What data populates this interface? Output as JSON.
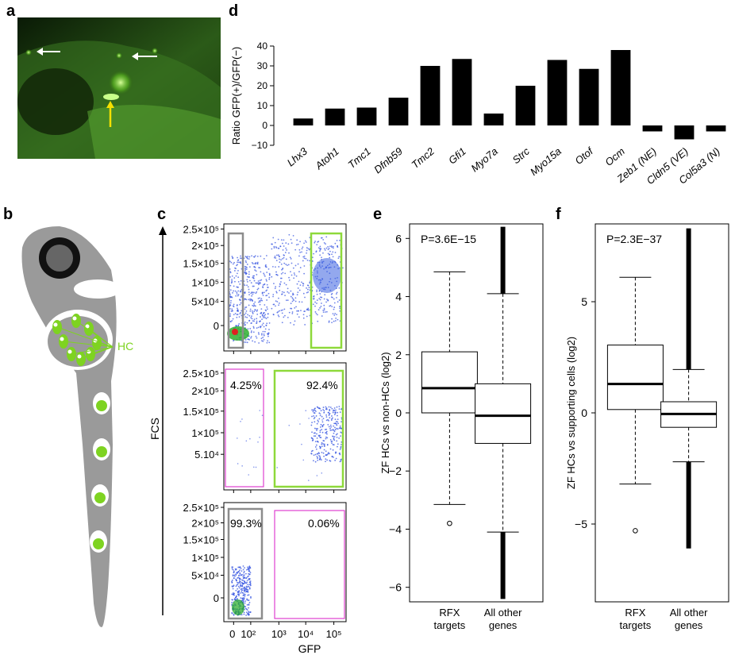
{
  "panel_labels": {
    "a": "a",
    "b": "b",
    "c": "c",
    "d": "d",
    "e": "e",
    "f": "f"
  },
  "panel_b": {
    "hc_label": "HC"
  },
  "panel_c": {
    "y_axis_label": "FCS",
    "x_axis_label": "GFP",
    "y_ticks": [
      "2.5×10⁵",
      "2×10⁵",
      "1.5×10⁵",
      "1×10⁵",
      "5×10⁴",
      "0"
    ],
    "y_ticks_mid": [
      "2.5×10⁵",
      "2×10⁵",
      "1.5×10⁵",
      "1×10⁵",
      "5.10⁴"
    ],
    "x_ticks": [
      "0",
      "10²",
      "10³",
      "10⁴",
      "10⁵"
    ],
    "plot2_left_pct": "4.25%",
    "plot2_right_pct": "92.4%",
    "plot3_left_pct": "99.3%",
    "plot3_right_pct": "0.06%"
  },
  "colors": {
    "bar": "#000000",
    "gfp_green": "#8ed93a",
    "gate_gray": "#8c8c8c",
    "gate_magenta": "#e040d0",
    "fish_gray": "#9a9a9a",
    "hc_green": "#7ed321"
  },
  "chart_data": [
    {
      "type": "bar",
      "panel": "d",
      "ylabel": "Ratio GFP(+)/GFP(−)",
      "ylim": [
        -10,
        40
      ],
      "yticks": [
        -10,
        0,
        10,
        20,
        30,
        40
      ],
      "categories": [
        "Lhx3",
        "Atoh1",
        "Tmc1",
        "Dfnb59",
        "Tmc2",
        "Gfi1",
        "Myo7a",
        "Strc",
        "Myo15a",
        "Otof",
        "Ocm",
        "Zeb1 (NE)",
        "Cldn5 (VE)",
        "Col5a3 (N)"
      ],
      "values": [
        3.5,
        8.5,
        9,
        14,
        30,
        33.5,
        6,
        20,
        33,
        28.5,
        38,
        -3,
        -7,
        -3
      ]
    },
    {
      "type": "box",
      "panel": "e",
      "ylabel": "ZF HCs vs non-HCs (log2)",
      "annotation": "P=3.6E−15",
      "ylim": [
        -6.5,
        6.5
      ],
      "yticks": [
        -6,
        -4,
        -2,
        0,
        2,
        4,
        6
      ],
      "categories": [
        "RFX\ntargets",
        "All other\ngenes"
      ],
      "boxes": [
        {
          "whisker_low": -3.15,
          "q1": 0.0,
          "median": 0.85,
          "q3": 2.1,
          "whisker_high": 4.85,
          "outliers": [
            -3.8
          ]
        },
        {
          "whisker_low": -4.1,
          "q1": -1.05,
          "median": -0.1,
          "q3": 1.0,
          "whisker_high": 4.1,
          "outliers_range": [
            [
              4.1,
              6.4
            ],
            [
              -6.4,
              -4.1
            ]
          ]
        }
      ]
    },
    {
      "type": "box",
      "panel": "f",
      "ylabel": "ZF HCs vs supporting cells (log2)",
      "annotation": "P=2.3E−37",
      "ylim": [
        -8.5,
        8.5
      ],
      "yticks": [
        -5,
        0,
        5
      ],
      "categories": [
        "RFX\ntargets",
        "All other\ngenes"
      ],
      "boxes": [
        {
          "whisker_low": -3.2,
          "q1": 0.15,
          "median": 1.3,
          "q3": 3.05,
          "whisker_high": 6.1,
          "outliers": [
            -5.3
          ]
        },
        {
          "whisker_low": -2.2,
          "q1": -0.65,
          "median": -0.05,
          "q3": 0.5,
          "whisker_high": 1.95,
          "outliers_range": [
            [
              1.95,
              8.3
            ],
            [
              -6.1,
              -2.2
            ]
          ]
        }
      ]
    }
  ]
}
